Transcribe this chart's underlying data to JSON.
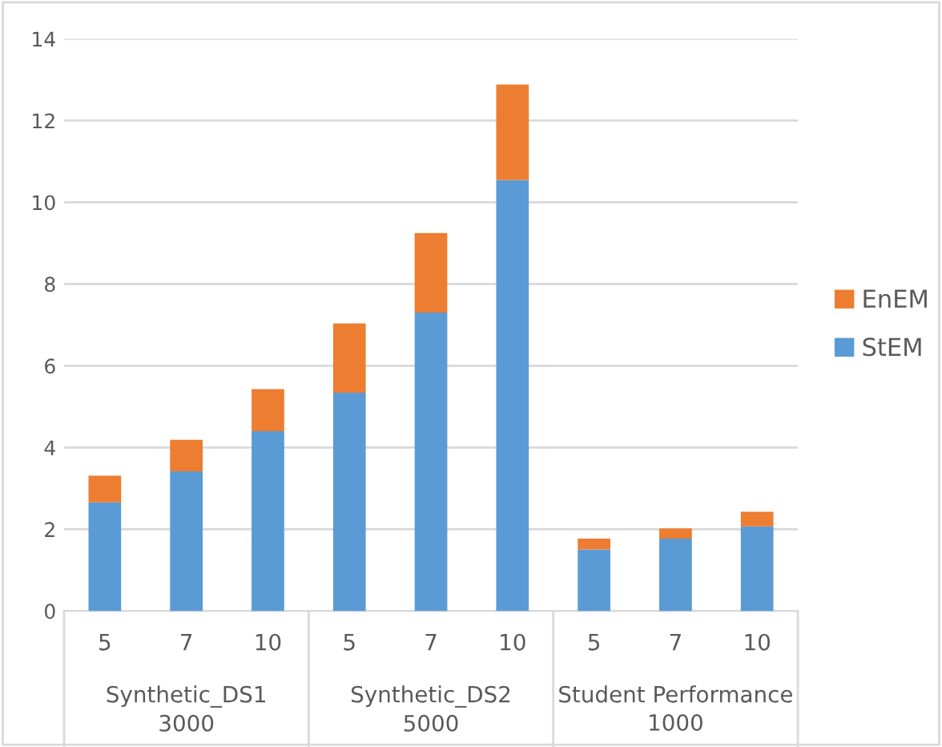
{
  "chart_data": {
    "type": "bar",
    "stacked": true,
    "categories": [
      "5",
      "7",
      "10",
      "5",
      "7",
      "10",
      "5",
      "7",
      "10"
    ],
    "series": [
      {
        "name": "StEM",
        "color": "#5b9bd5",
        "values": [
          2.66,
          3.42,
          4.4,
          5.34,
          7.3,
          10.55,
          1.51,
          1.77,
          2.07
        ]
      },
      {
        "name": "EnEM",
        "color": "#ed7d31",
        "values": [
          0.65,
          0.77,
          1.03,
          1.7,
          1.95,
          2.33,
          0.26,
          0.25,
          0.36
        ]
      }
    ],
    "annotations": [
      "Synthetic_DS1\n3000",
      "Synthetic_DS2\n5000",
      "Student Performance\n1000"
    ],
    "ylim": [
      0,
      14
    ],
    "yticks": [
      0,
      2,
      4,
      6,
      8,
      10,
      12,
      14
    ],
    "grid": "y",
    "legend": "right"
  }
}
